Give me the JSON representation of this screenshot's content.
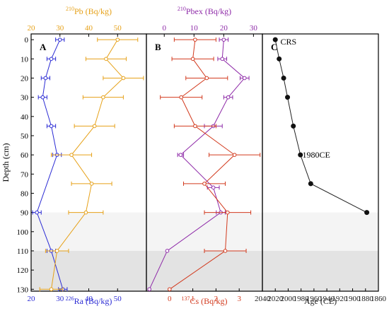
{
  "y_axis": {
    "label": "Depth (cm)",
    "ticks": [
      0,
      10,
      20,
      30,
      40,
      50,
      60,
      70,
      80,
      90,
      100,
      110,
      120,
      130
    ],
    "range": [
      -3,
      131
    ]
  },
  "shading": [
    {
      "from": 90,
      "to": 110,
      "color": "#f4f4f4"
    },
    {
      "from": 110,
      "to": 131,
      "color": "#e3e3e3"
    }
  ],
  "colors": {
    "ra": "#2b2bd4",
    "pb": "#e6a118",
    "pbex": "#8e2aa8",
    "cs": "#d23a1e",
    "age": "#222222"
  },
  "chart_data": [
    {
      "type": "line",
      "panel_label": "A",
      "series": [
        {
          "name": "226Ra",
          "axis_label": "226Ra (Bq/kg)",
          "axis_position": "bottom",
          "xlim": [
            20,
            60
          ],
          "ticks": [
            20,
            30,
            40,
            50
          ],
          "depth": [
            0,
            10,
            20,
            30,
            45,
            60,
            90,
            110,
            130
          ],
          "values": [
            30,
            27,
            25,
            24,
            27,
            29,
            22,
            27,
            31
          ],
          "errors": [
            1.5,
            1.5,
            1.5,
            1.5,
            1.5,
            1.5,
            1.5,
            1.5,
            1.5
          ]
        },
        {
          "name": "210Pb",
          "axis_label": "210Pb (Bq/kg)",
          "axis_position": "top",
          "xlim": [
            20,
            60
          ],
          "ticks": [
            20,
            30,
            40,
            50
          ],
          "depth": [
            0,
            10,
            20,
            30,
            45,
            60,
            75,
            90,
            110,
            130
          ],
          "values": [
            50,
            46,
            52,
            45,
            42,
            34,
            41,
            39,
            29,
            27
          ],
          "errors": [
            7,
            7,
            7,
            7,
            7,
            7,
            7,
            6,
            4,
            4
          ]
        }
      ]
    },
    {
      "type": "line",
      "panel_label": "B",
      "series": [
        {
          "name": "210Pbex",
          "axis_label": "210Pbex (Bq/kg)",
          "axis_position": "top",
          "xlim": [
            -6,
            33
          ],
          "ticks": [
            0,
            10,
            20,
            30
          ],
          "depth": [
            0,
            10,
            20,
            30,
            45,
            60,
            77,
            90,
            110,
            130
          ],
          "values": [
            20,
            19.5,
            27,
            21.5,
            16.5,
            5.5,
            16.5,
            19,
            1,
            -5
          ],
          "errors": [
            1.5,
            1.5,
            1.5,
            1.5,
            3,
            1,
            2,
            1.5,
            0,
            0
          ]
        },
        {
          "name": "137Cs",
          "axis_label": "137Cs (Bq/kg)",
          "axis_position": "bottom",
          "xlim": [
            -1,
            4
          ],
          "ticks": [
            0,
            1,
            2,
            3
          ],
          "depth": [
            0,
            10,
            20,
            30,
            45,
            60,
            75,
            90,
            110,
            130
          ],
          "values": [
            1.1,
            1.0,
            1.6,
            0.5,
            1.1,
            2.8,
            1.5,
            2.5,
            2.4,
            0
          ],
          "errors": [
            0.9,
            0.9,
            0.9,
            0.9,
            0.9,
            1.1,
            0.9,
            1.0,
            0.9,
            0
          ]
        }
      ]
    },
    {
      "type": "line",
      "panel_label": "C",
      "series": [
        {
          "name": "CRS",
          "axis_label": "Age (CE)",
          "axis_position": "bottom",
          "xlim": [
            2040,
            1860
          ],
          "ticks": [
            2040,
            2020,
            2000,
            1980,
            1960,
            1940,
            1920,
            1900,
            1880,
            1860
          ],
          "depth": [
            0,
            10,
            20,
            30,
            45,
            60,
            75,
            90
          ],
          "values": [
            2020,
            2014,
            2007,
            2001,
            1992,
            1981,
            1965,
            1878
          ]
        }
      ],
      "annotations": [
        {
          "text": "CRS",
          "x": 2012,
          "y": 1
        },
        {
          "text": "1980CE",
          "x": 1978,
          "y": 60
        }
      ]
    }
  ]
}
